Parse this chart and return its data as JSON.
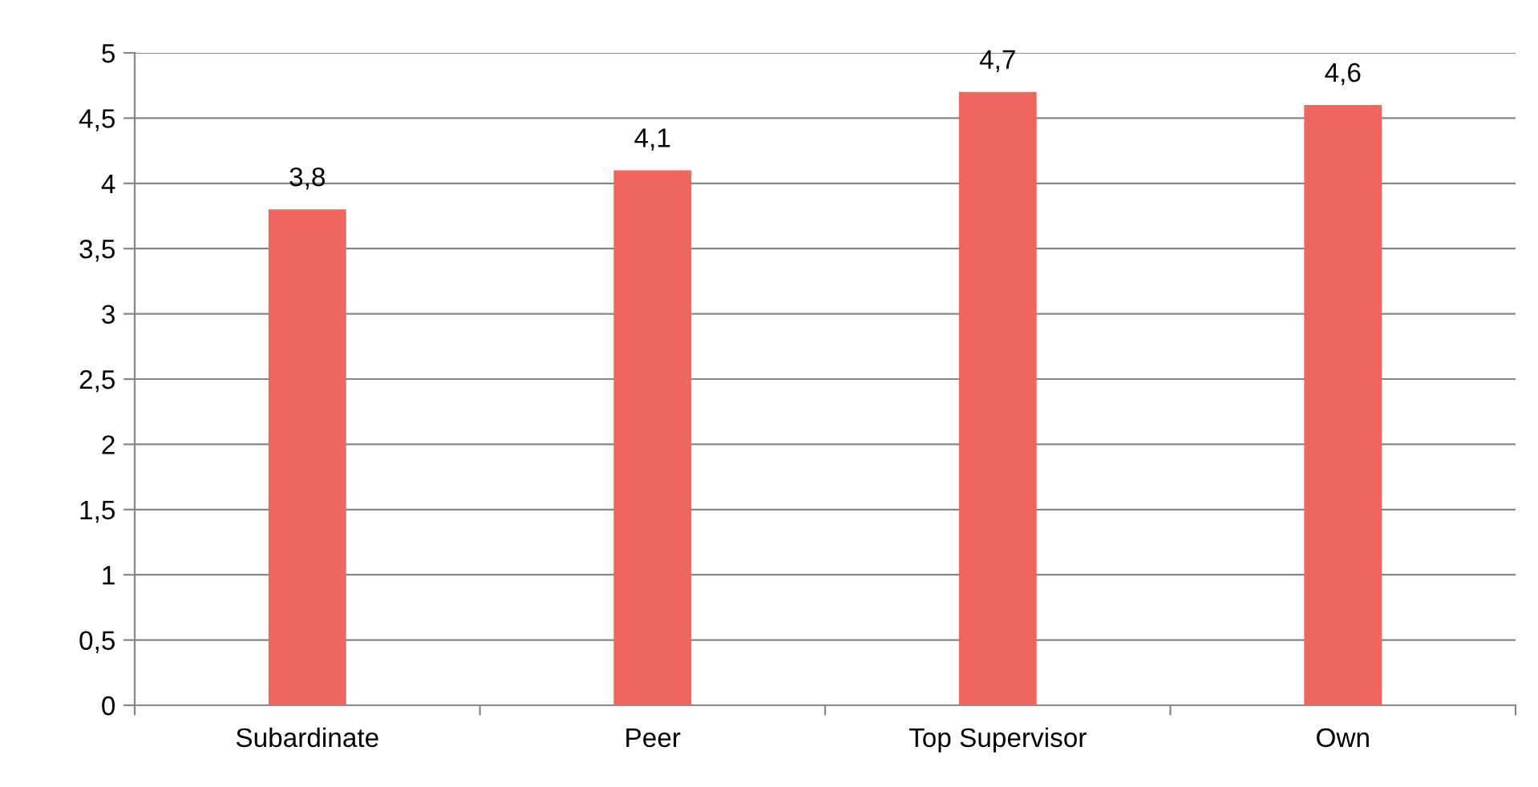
{
  "chart_data": {
    "type": "bar",
    "categories": [
      "Subardinate",
      "Peer",
      "Top Supervisor",
      "Own"
    ],
    "values": [
      3.8,
      4.1,
      4.7,
      4.6
    ],
    "value_labels": [
      "3,8",
      "4,1",
      "4,7",
      "4,6"
    ],
    "color": "#f0665e",
    "ylim": [
      0,
      5
    ],
    "yticks": [
      0,
      {
        "value": 0.5,
        "label": "0,5"
      },
      1,
      {
        "value": 1.5,
        "label": "1,5"
      },
      2,
      {
        "value": 2.5,
        "label": "2,5"
      },
      3,
      {
        "value": 3.5,
        "label": "3,5"
      },
      4,
      {
        "value": 4.5,
        "label": "4,5"
      },
      5
    ],
    "grid": "y",
    "legend": false
  }
}
